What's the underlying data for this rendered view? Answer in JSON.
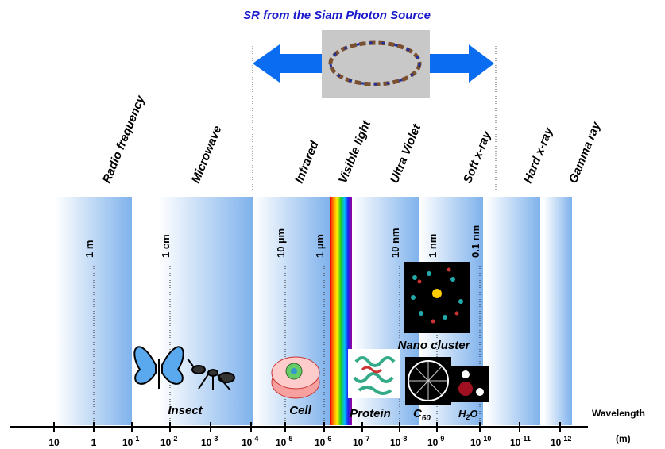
{
  "header": {
    "title": "SR from the Siam Photon Source"
  },
  "bands": [
    "Radio frequency",
    "Microwave",
    "Infrared",
    "Visible light",
    "Ultra Violet",
    "Soft x-ray",
    "Hard x-ray",
    "Gamma ray"
  ],
  "markers": [
    "1 m",
    "1 cm",
    "10 µm",
    "1 µm",
    "10 nm",
    "1 nm",
    "0.1 nm"
  ],
  "axis": {
    "label": "Wavelength",
    "unit": "(m)",
    "ticks": [
      {
        "base": "10"
      },
      {
        "base": "1"
      },
      {
        "base": "10",
        "exp": "-1"
      },
      {
        "base": "10",
        "exp": "-2"
      },
      {
        "base": "10",
        "exp": "-3"
      },
      {
        "base": "10",
        "exp": "-4"
      },
      {
        "base": "10",
        "exp": "-5"
      },
      {
        "base": "10",
        "exp": "-6"
      },
      {
        "base": "10",
        "exp": "-7"
      },
      {
        "base": "10",
        "exp": "-8"
      },
      {
        "base": "10",
        "exp": "-9"
      },
      {
        "base": "10",
        "exp": "-10"
      },
      {
        "base": "10",
        "exp": "-11"
      },
      {
        "base": "10",
        "exp": "-12"
      }
    ]
  },
  "objects": {
    "insect": "Insect",
    "cell": "Cell",
    "protein": "Protein",
    "nano": "Nano cluster",
    "c60": {
      "base": "C",
      "sub": "60"
    },
    "h2o": {
      "base": "H",
      "sub": "2",
      "rest": "O"
    }
  }
}
